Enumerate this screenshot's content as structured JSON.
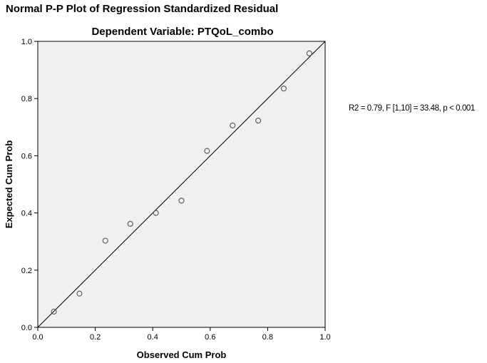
{
  "chart_data": {
    "type": "scatter",
    "title": "Normal P-P Plot of Regression Standardized Residual",
    "subtitle": "Dependent Variable: PTQoL_combo",
    "xlabel": "Observed Cum Prob",
    "ylabel": "Expected Cum Prob",
    "xlim": [
      0.0,
      1.0
    ],
    "ylim": [
      0.0,
      1.0
    ],
    "xticks": [
      "0.0",
      "0.2",
      "0.4",
      "0.6",
      "0.8",
      "1.0"
    ],
    "yticks": [
      "0.0",
      "0.2",
      "0.4",
      "0.6",
      "0.8",
      "1.0"
    ],
    "reference_line": [
      [
        0.0,
        0.0
      ],
      [
        1.0,
        1.0
      ]
    ],
    "points": [
      {
        "x": 0.056,
        "y": 0.055
      },
      {
        "x": 0.145,
        "y": 0.118
      },
      {
        "x": 0.235,
        "y": 0.303
      },
      {
        "x": 0.322,
        "y": 0.362
      },
      {
        "x": 0.411,
        "y": 0.4
      },
      {
        "x": 0.5,
        "y": 0.443
      },
      {
        "x": 0.589,
        "y": 0.617
      },
      {
        "x": 0.678,
        "y": 0.706
      },
      {
        "x": 0.767,
        "y": 0.723
      },
      {
        "x": 0.856,
        "y": 0.835
      },
      {
        "x": 0.945,
        "y": 0.958
      }
    ],
    "plot_background": "#f0f0f0",
    "marker_color": "#555555",
    "grid": false,
    "annotation": "R2 = 0.79, F [1,10] = 33.48, p < 0.001"
  }
}
